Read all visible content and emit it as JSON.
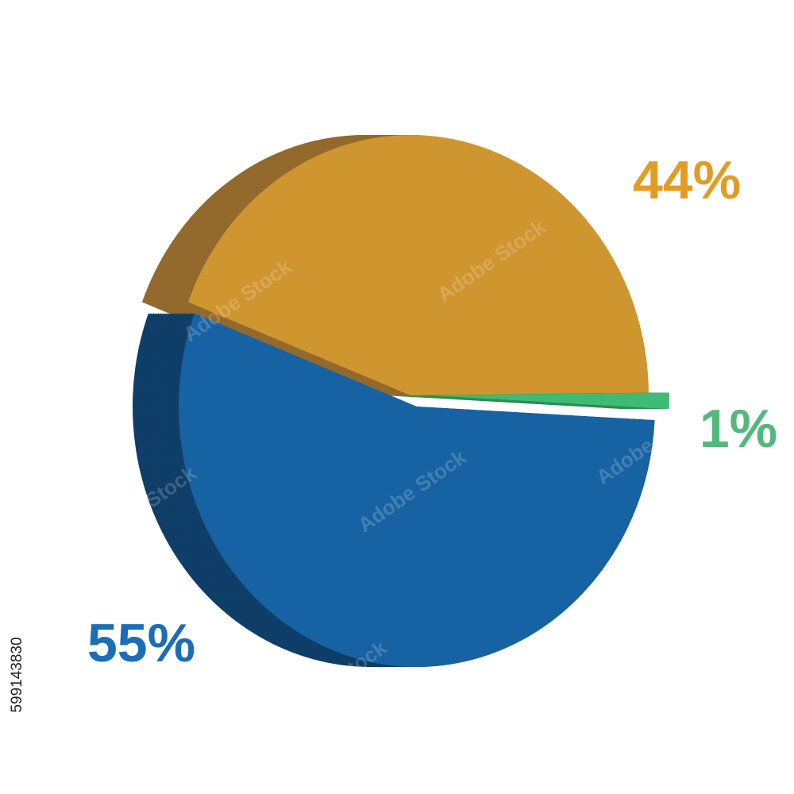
{
  "chart_data": {
    "type": "pie",
    "series": [
      {
        "name": "55%",
        "color": "#1762a3",
        "side_color": "#0f3e68",
        "label_color": "#1b6db6",
        "values": [
          55
        ],
        "value_labels": [
          "55%"
        ]
      },
      {
        "name": "44%",
        "color": "#cf952f",
        "side_color": "#93692c",
        "label_color": "#e29c24",
        "values": [
          44
        ],
        "value_labels": [
          "44%"
        ]
      },
      {
        "name": "1%",
        "color": "#3fbc74",
        "side_color": "#2b8f55",
        "label_color": "#52b97c",
        "values": [
          1
        ],
        "value_labels": [
          "1%"
        ]
      }
    ],
    "stock_id": "599143830",
    "watermark": "Adobe Stock"
  }
}
